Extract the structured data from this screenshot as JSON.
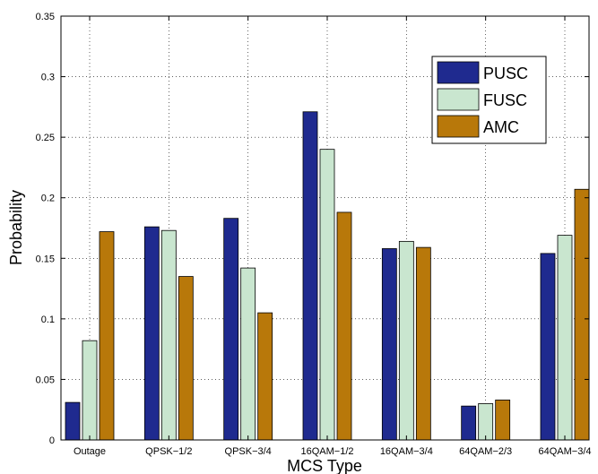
{
  "chart_data": {
    "type": "bar",
    "title": "",
    "xlabel": "MCS Type",
    "ylabel": "Probability",
    "categories": [
      "Outage",
      "QPSK−1/2",
      "QPSK−3/4",
      "16QAM−1/2",
      "16QAM−3/4",
      "64QAM−2/3",
      "64QAM−3/4"
    ],
    "ylim": [
      0,
      0.35
    ],
    "yticks": [
      0,
      0.05,
      0.1,
      0.15,
      0.2,
      0.25,
      0.3,
      0.35
    ],
    "ytick_labels": [
      "0",
      "0.05",
      "0.1",
      "0.15",
      "0.2",
      "0.25",
      "0.3",
      "0.35"
    ],
    "grid": true,
    "legend_position": "top-right",
    "series": [
      {
        "name": "PUSC",
        "color": "#1f2a8f",
        "values": [
          0.031,
          0.176,
          0.183,
          0.271,
          0.158,
          0.028,
          0.154
        ]
      },
      {
        "name": "FUSC",
        "color": "#c9e6cf",
        "values": [
          0.082,
          0.173,
          0.142,
          0.24,
          0.164,
          0.03,
          0.169
        ]
      },
      {
        "name": "AMC",
        "color": "#b8780a",
        "values": [
          0.172,
          0.135,
          0.105,
          0.188,
          0.159,
          0.033,
          0.207
        ]
      }
    ]
  }
}
